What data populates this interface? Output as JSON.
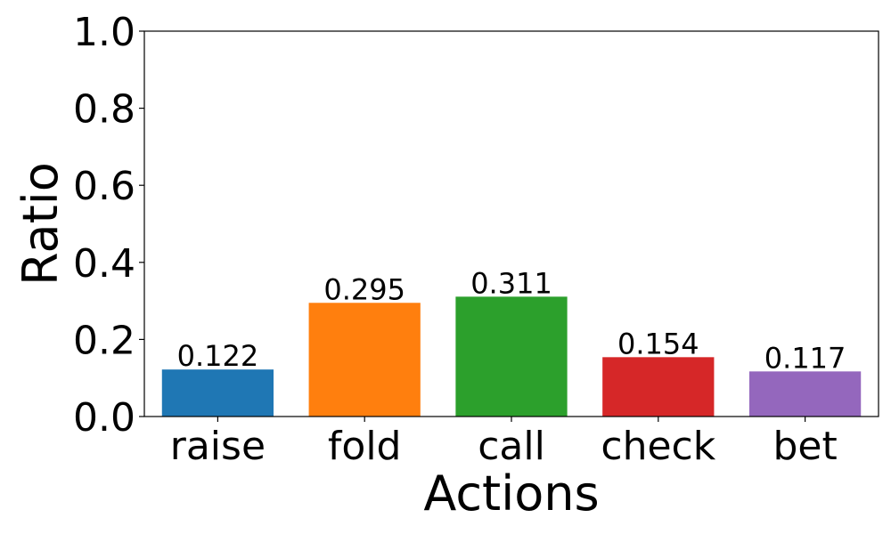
{
  "chart_data": {
    "type": "bar",
    "title": "",
    "xlabel": "Actions",
    "ylabel": "Ratio",
    "categories": [
      "raise",
      "fold",
      "call",
      "check",
      "bet"
    ],
    "values": [
      0.122,
      0.295,
      0.311,
      0.154,
      0.117
    ],
    "value_labels": [
      "0.122",
      "0.295",
      "0.311",
      "0.154",
      "0.117"
    ],
    "colors": [
      "#1f77b4",
      "#ff7f0e",
      "#2ca02c",
      "#d62728",
      "#9467bd"
    ],
    "ylim": [
      0,
      1.0
    ],
    "yticks": [
      0.0,
      0.2,
      0.4,
      0.6,
      0.8,
      1.0
    ],
    "ytick_labels": [
      "0.0",
      "0.2",
      "0.4",
      "0.6",
      "0.8",
      "1.0"
    ],
    "grid": false,
    "legend": "none"
  }
}
